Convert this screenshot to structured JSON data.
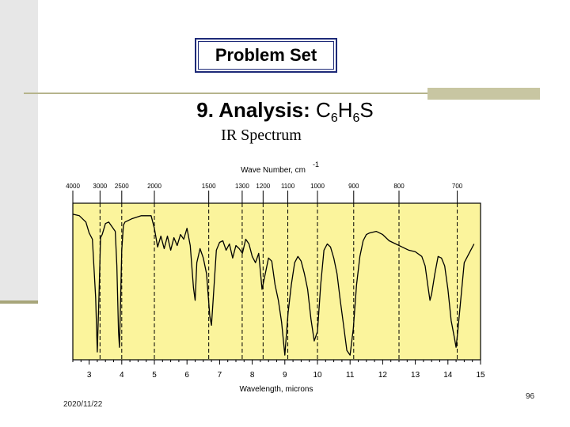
{
  "slide": {
    "title": "Problem Set",
    "heading_prefix": "9. Analysis: ",
    "formula": [
      {
        "t": "C",
        "sub": false
      },
      {
        "t": "6",
        "sub": true
      },
      {
        "t": "H",
        "sub": false
      },
      {
        "t": "6",
        "sub": true
      },
      {
        "t": "S",
        "sub": false
      }
    ],
    "subtitle": "IR Spectrum",
    "date": "2020/11/22",
    "page": "96"
  },
  "colors": {
    "plot_fill": "#fbf49c",
    "frame": "#000000",
    "accent_bar": "#a7a57a"
  },
  "chart_data": {
    "type": "line",
    "title": "",
    "top_axis_label": "Wave Number, cm",
    "top_axis_superscript": "-1",
    "top_ticks": [
      "4000",
      "3000",
      "2500",
      "2000",
      "1500",
      "1300",
      "1200",
      "1100",
      "1000",
      "900",
      "800",
      "700"
    ],
    "xlabel": "Wavelength, microns",
    "xlim": [
      2.5,
      15
    ],
    "x_ticks": [
      "3",
      "4",
      "5",
      "6",
      "7",
      "8",
      "9",
      "10",
      "11",
      "12",
      "13",
      "14",
      "15"
    ],
    "ylabel": "",
    "ylim": [
      0,
      100
    ],
    "grid": "dashed vertical lines at selected wave numbers",
    "series": [
      {
        "x": [
          2.5,
          2.7,
          2.9,
          3.0,
          3.1,
          3.2,
          3.25,
          3.3,
          3.35,
          3.4,
          3.5,
          3.6,
          3.8,
          3.85,
          3.9,
          3.93,
          3.96,
          4.0,
          4.05,
          4.1,
          4.3,
          4.6,
          4.9,
          5.0,
          5.1,
          5.2,
          5.3,
          5.4,
          5.5,
          5.6,
          5.7,
          5.8,
          5.9,
          6.0,
          6.1,
          6.2,
          6.25,
          6.3,
          6.4,
          6.5,
          6.6,
          6.7,
          6.75,
          6.8,
          6.9,
          7.0,
          7.1,
          7.2,
          7.3,
          7.4,
          7.5,
          7.6,
          7.7,
          7.8,
          7.9,
          8.0,
          8.1,
          8.2,
          8.3,
          8.4,
          8.5,
          8.6,
          8.7,
          8.8,
          8.9,
          9.0,
          9.1,
          9.2,
          9.3,
          9.4,
          9.5,
          9.6,
          9.7,
          9.8,
          9.9,
          10.0,
          10.1,
          10.2,
          10.3,
          10.4,
          10.5,
          10.6,
          10.7,
          10.8,
          10.9,
          11.0,
          11.1,
          11.2,
          11.3,
          11.4,
          11.5,
          11.6,
          11.8,
          12.0,
          12.2,
          12.4,
          12.6,
          12.8,
          13.0,
          13.2,
          13.3,
          13.4,
          13.45,
          13.5,
          13.6,
          13.7,
          13.8,
          13.9,
          14.0,
          14.1,
          14.2,
          14.25,
          14.3,
          14.4,
          14.5,
          14.6,
          14.7,
          14.8
        ],
        "y": [
          93,
          92,
          88,
          81,
          77,
          40,
          5,
          40,
          78,
          80,
          87,
          88,
          82,
          60,
          18,
          8,
          35,
          70,
          86,
          88,
          90,
          92,
          92,
          84,
          72,
          79,
          71,
          79,
          70,
          78,
          73,
          80,
          77,
          84,
          73,
          46,
          38,
          62,
          71,
          65,
          55,
          28,
          22,
          38,
          70,
          75,
          76,
          70,
          74,
          65,
          73,
          71,
          68,
          77,
          74,
          66,
          62,
          68,
          45,
          55,
          65,
          63,
          48,
          38,
          24,
          3,
          30,
          48,
          62,
          66,
          63,
          55,
          45,
          26,
          12,
          18,
          48,
          70,
          74,
          72,
          65,
          55,
          38,
          22,
          6,
          3,
          20,
          48,
          66,
          76,
          80,
          81,
          82,
          80,
          76,
          74,
          72,
          70,
          69,
          66,
          60,
          45,
          38,
          42,
          55,
          66,
          65,
          60,
          45,
          25,
          14,
          8,
          18,
          40,
          62,
          66,
          70,
          74
        ]
      }
    ]
  }
}
